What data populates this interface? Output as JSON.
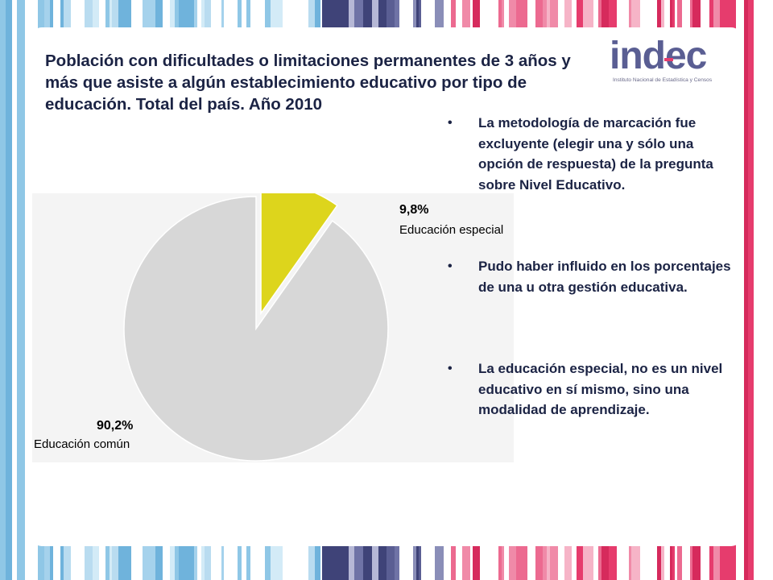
{
  "title": "Población con dificultades o limitaciones permanentes de 3 años y más que asiste a algún establecimiento educativo por tipo de educación. Total del país. Año 2010",
  "logo": {
    "wordmark": "indec",
    "subtitle": "Instituto Nacional de Estadística y Censos"
  },
  "colors": {
    "special": "#ddd51c",
    "common": "#d7d7d7",
    "accent_pink": "#e63c6d",
    "accent_purple": "#5a5e93",
    "accent_blue": "#8fc7e6"
  },
  "chart_data": {
    "type": "pie",
    "title": "",
    "slices": [
      {
        "label": "Educación especial",
        "value": 9.8,
        "display": "9,8%",
        "exploded": true,
        "color": "#ddd51c"
      },
      {
        "label": "Educación común",
        "value": 90.2,
        "display": "90,2%",
        "exploded": false,
        "color": "#d7d7d7"
      }
    ]
  },
  "bullets": [
    "La metodología de marcación fue excluyente (elegir una y sólo una opción de respuesta) de la pregunta sobre Nivel Educativo.",
    "Pudo haber influido en los porcentajes de una u otra gestión educativa.",
    "La educación especial, no es un nivel educativo en sí mismo, sino una modalidad de aprendizaje."
  ],
  "bullet_symbol": "•"
}
